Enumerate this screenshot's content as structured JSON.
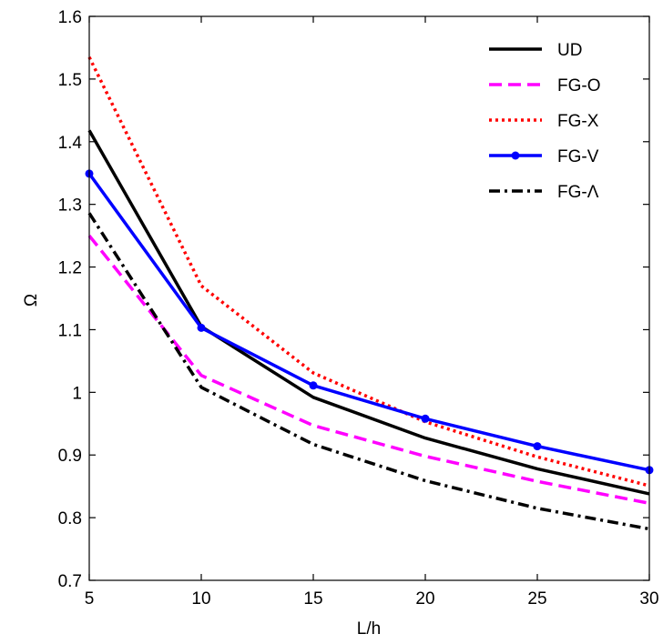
{
  "chart_data": {
    "type": "line",
    "xlabel": "L/h",
    "ylabel": "Ω",
    "xlim": [
      5,
      30
    ],
    "ylim": [
      0.7,
      1.6
    ],
    "x": [
      5,
      10,
      15,
      20,
      25,
      30
    ],
    "x_ticks": [
      "5",
      "10",
      "15",
      "20",
      "25",
      "30"
    ],
    "y_ticks": [
      "0.7",
      "0.8",
      "0.9",
      "1",
      "1.1",
      "1.2",
      "1.3",
      "1.4",
      "1.5",
      "1.6"
    ],
    "grid": false,
    "legend_position": "top-right",
    "series": [
      {
        "name": "UD",
        "values": [
          1.418,
          1.105,
          0.992,
          0.927,
          0.878,
          0.838
        ],
        "color": "#000000",
        "style": "solid",
        "marker": "none"
      },
      {
        "name": "FG-O",
        "values": [
          1.25,
          1.027,
          0.947,
          0.898,
          0.858,
          0.823
        ],
        "color": "#ff00ff",
        "style": "dashed",
        "marker": "none"
      },
      {
        "name": "FG-X",
        "values": [
          1.535,
          1.17,
          1.031,
          0.953,
          0.897,
          0.851
        ],
        "color": "#ff0000",
        "style": "dotted",
        "marker": "none"
      },
      {
        "name": "FG-V",
        "values": [
          1.349,
          1.103,
          1.011,
          0.958,
          0.914,
          0.876
        ],
        "color": "#0000ff",
        "style": "solid",
        "marker": "circle"
      },
      {
        "name": "FG-Λ",
        "values": [
          1.286,
          1.008,
          0.917,
          0.859,
          0.815,
          0.782
        ],
        "color": "#000000",
        "style": "dashdot",
        "marker": "none"
      }
    ]
  }
}
